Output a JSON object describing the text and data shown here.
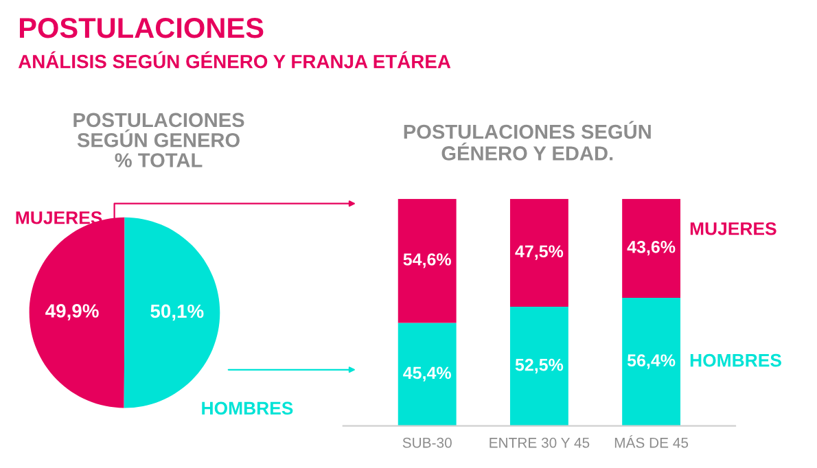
{
  "chart_data": [
    {
      "type": "pie",
      "title": "POSTULACIONES\nSEGÚN GENERO\n% TOTAL",
      "annotations": [
        "POSTULACIONES",
        "ANÁLISIS SEGÚN GÉNERO Y FRANJA ETÁREA"
      ],
      "categories": [
        "MUJERES",
        "HOMBRES"
      ],
      "values": [
        49.9,
        50.1
      ],
      "colors": [
        "#e6005c",
        "#00e3d6"
      ],
      "value_labels": [
        "49,9%",
        "50,1%"
      ]
    },
    {
      "type": "bar",
      "title": "POSTULACIONES SEGÚN\nGÉNERO Y EDAD.",
      "stacked": true,
      "categories": [
        "SUB-30",
        "ENTRE 30 Y 45",
        "MÁS DE 45"
      ],
      "series": [
        {
          "name": "HOMBRES",
          "color": "#00e3d6",
          "values": [
            45.4,
            52.5,
            56.4
          ],
          "value_labels": [
            "45,4%",
            "52,5%",
            "56,4%"
          ]
        },
        {
          "name": "MUJERES",
          "color": "#e6005c",
          "values": [
            54.6,
            47.5,
            43.6
          ],
          "value_labels": [
            "54,6%",
            "47,5%",
            "43,6%"
          ]
        }
      ]
    }
  ]
}
